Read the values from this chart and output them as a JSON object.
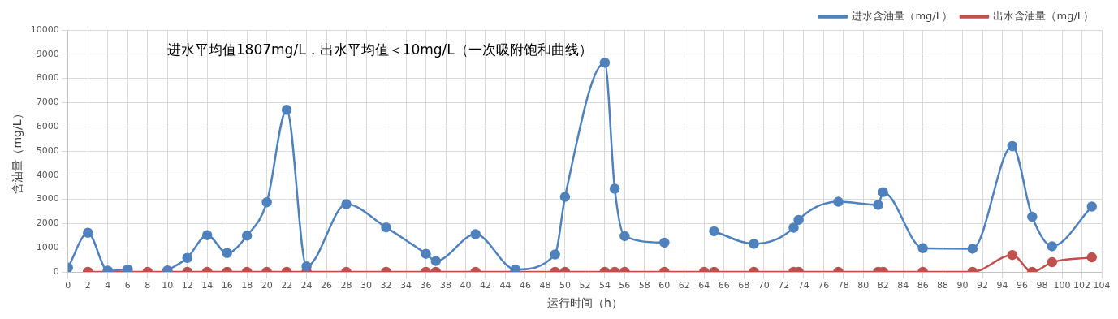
{
  "chart_data": {
    "type": "line",
    "annotations": [
      "进水平均值1807mg/L，出水平均值＜10mg/L（一次吸附饱和曲线）"
    ],
    "xlabel": "运行时间（h）",
    "ylabel": "含油量（mg/L）",
    "x": [
      0,
      2,
      4,
      6,
      8,
      10,
      12,
      14,
      16,
      18,
      20,
      22,
      24,
      28,
      32,
      36,
      37,
      41,
      45,
      49,
      50,
      54,
      55,
      56,
      60,
      64,
      65,
      69,
      73,
      73.5,
      77.5,
      81.5,
      82,
      86,
      91,
      95,
      97,
      99,
      103
    ],
    "series": [
      {
        "name": "进水含油量（mg/L）",
        "color": "#4f81bd",
        "values": [
          180,
          1620,
          50,
          100,
          null,
          60,
          580,
          1520,
          780,
          1500,
          2880,
          6700,
          230,
          2800,
          1840,
          750,
          450,
          1560,
          100,
          720,
          3100,
          8650,
          3440,
          1480,
          1210,
          null,
          1680,
          1160,
          1830,
          2150,
          2900,
          2770,
          3300,
          980,
          960,
          5200,
          2280,
          1060,
          2700
        ]
      },
      {
        "name": "出水含油量（mg/L）",
        "color": "#c0504d",
        "values": [
          null,
          0,
          0,
          0,
          0,
          0,
          0,
          0,
          0,
          0,
          0,
          0,
          0,
          0,
          0,
          0,
          0,
          0,
          0,
          0,
          0,
          0,
          0,
          0,
          0,
          0,
          0,
          0,
          0,
          0,
          0,
          0,
          0,
          0,
          0,
          700,
          0,
          400,
          600
        ]
      }
    ],
    "xlim": [
      0,
      104
    ],
    "xticks": [
      0,
      2,
      4,
      6,
      8,
      10,
      12,
      14,
      16,
      18,
      20,
      22,
      24,
      26,
      28,
      30,
      32,
      34,
      36,
      38,
      40,
      42,
      44,
      46,
      48,
      50,
      52,
      54,
      56,
      58,
      60,
      62,
      64,
      66,
      68,
      70,
      72,
      74,
      76,
      78,
      80,
      82,
      84,
      86,
      88,
      90,
      92,
      94,
      96,
      98,
      100,
      102,
      104
    ],
    "ylim": [
      0,
      10000
    ],
    "yticks": [
      0,
      1000,
      2000,
      3000,
      4000,
      5000,
      6000,
      7000,
      8000,
      9000,
      10000
    ],
    "grid": true,
    "legend": "top right",
    "marker": "circle",
    "line_style": "solid"
  }
}
